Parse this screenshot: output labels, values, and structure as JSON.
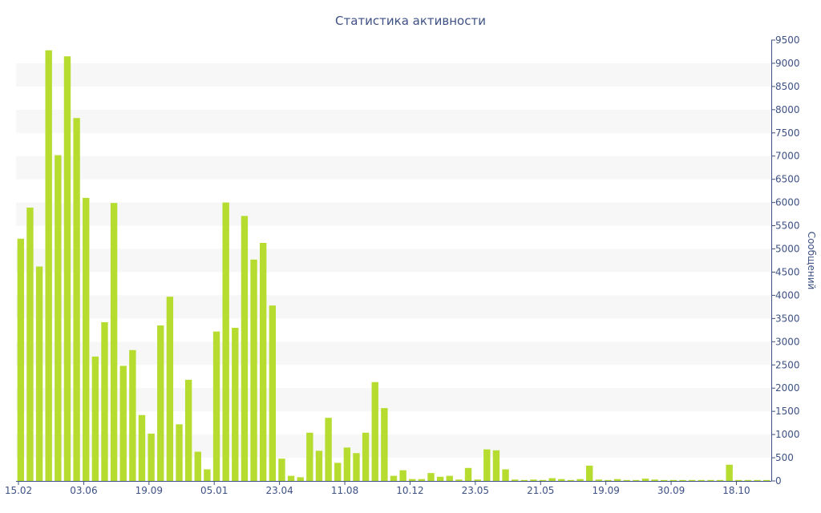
{
  "chart_data": {
    "type": "bar",
    "title": "Статистика активности",
    "ylabel": "Сообщений",
    "xlabel": "",
    "ylim": [
      0,
      9500
    ],
    "ytick_step": 500,
    "yaxis_side": "right",
    "grid": "alternating horizontal bands",
    "x_tick_labels": [
      {
        "label": "15.02",
        "index": 0
      },
      {
        "label": "03.06",
        "index": 7
      },
      {
        "label": "19.09",
        "index": 14
      },
      {
        "label": "05.01",
        "index": 21
      },
      {
        "label": "23.04",
        "index": 28
      },
      {
        "label": "11.08",
        "index": 35
      },
      {
        "label": "10.12",
        "index": 42
      },
      {
        "label": "23.05",
        "index": 49
      },
      {
        "label": "21.05",
        "index": 56
      },
      {
        "label": "19.09",
        "index": 63
      },
      {
        "label": "30.09",
        "index": 70
      },
      {
        "label": "18.10",
        "index": 77
      }
    ],
    "values": [
      5220,
      5890,
      4620,
      9280,
      7020,
      9150,
      7820,
      6100,
      2680,
      3420,
      5990,
      2480,
      2820,
      1420,
      1020,
      3350,
      3970,
      1220,
      2180,
      630,
      250,
      3220,
      6000,
      3300,
      5710,
      4770,
      5130,
      3780,
      480,
      110,
      80,
      1040,
      650,
      1360,
      390,
      720,
      600,
      1040,
      2130,
      1570,
      110,
      230,
      40,
      40,
      170,
      90,
      110,
      30,
      280,
      30,
      680,
      660,
      250,
      30,
      20,
      30,
      20,
      60,
      40,
      20,
      40,
      330,
      30,
      20,
      40,
      20,
      20,
      50,
      30,
      20,
      20,
      20,
      20,
      20,
      20,
      20,
      350,
      20,
      20,
      20,
      20
    ],
    "colors": {
      "bar": "#b5dc2f",
      "text": "#3e5184",
      "band": "#f7f7f7",
      "axis": "#3e5184"
    }
  }
}
